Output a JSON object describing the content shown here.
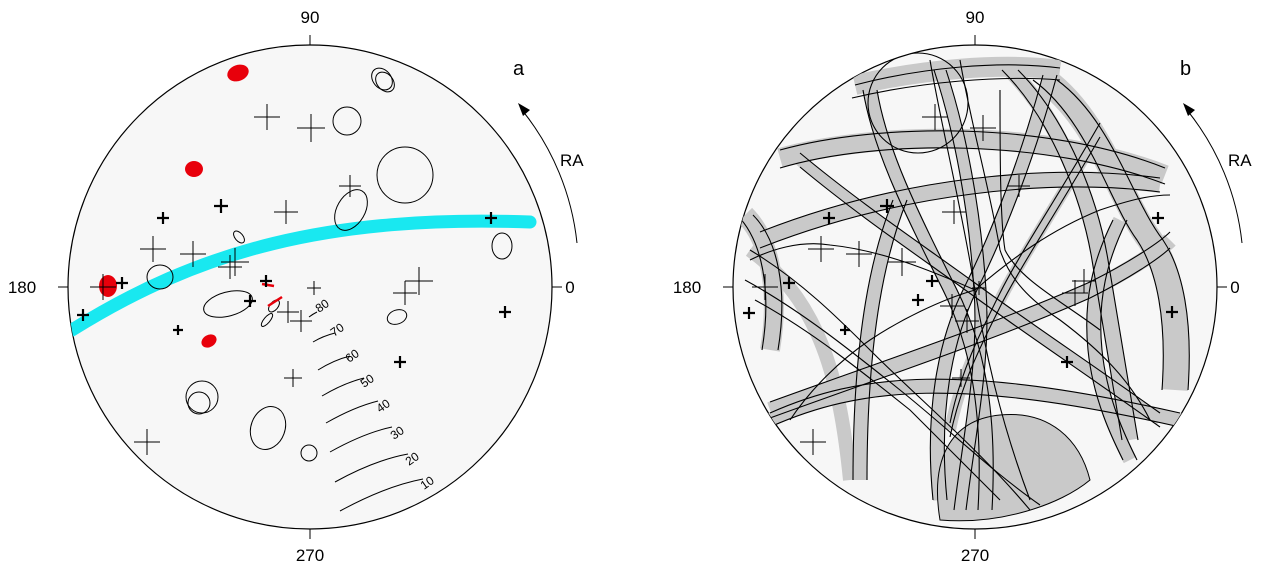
{
  "colors": {
    "background": "#f7f7f7",
    "outline": "#000000",
    "highlight_red": "#e8000b",
    "band_cyan": "#19e8f0",
    "band_gray": "#c9c9c9"
  },
  "panel_a": {
    "label": "a",
    "axis_labels": {
      "top": "90",
      "left": "180",
      "right": "0",
      "bottom": "270"
    },
    "rotation_label": "RA",
    "scale_labels": [
      "80",
      "70",
      "60",
      "50",
      "40",
      "30",
      "20",
      "10"
    ]
  },
  "panel_b": {
    "label": "b",
    "axis_labels": {
      "top": "90",
      "left": "180",
      "right": "0",
      "bottom": "270"
    },
    "rotation_label": "RA"
  }
}
